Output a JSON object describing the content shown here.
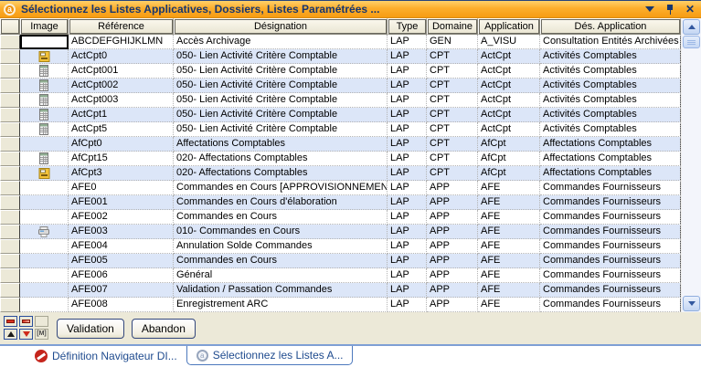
{
  "window": {
    "title": "Sélectionnez les Listes Applicatives, Dossiers, Listes Paramétrées ...",
    "logo_letter": "a",
    "controls": [
      "chevron-down-icon",
      "pin-icon",
      "close-icon"
    ]
  },
  "table": {
    "columns": [
      "",
      "Image",
      "Référence",
      "Désignation",
      "Type",
      "Domaine",
      "Application",
      "Dés. Application"
    ],
    "rows": [
      {
        "icon": "",
        "reference": "ABCDEFGHIJKLMN",
        "designation": "Accès Archivage",
        "type": "LAP",
        "domaine": "GEN",
        "application": "A_VISU",
        "des_application": "Consultation Entités Archivées",
        "selected": true
      },
      {
        "icon": "form-edit-icon",
        "reference": "ActCpt0",
        "designation": "050- Lien Activité Critère Comptable",
        "type": "LAP",
        "domaine": "CPT",
        "application": "ActCpt",
        "des_application": "Activités Comptables"
      },
      {
        "icon": "table-icon",
        "reference": "ActCpt001",
        "designation": "050- Lien Activité Critère Comptable",
        "type": "LAP",
        "domaine": "CPT",
        "application": "ActCpt",
        "des_application": "Activités Comptables"
      },
      {
        "icon": "table-icon",
        "reference": "ActCpt002",
        "designation": "050- Lien Activité Critère Comptable",
        "type": "LAP",
        "domaine": "CPT",
        "application": "ActCpt",
        "des_application": "Activités Comptables"
      },
      {
        "icon": "table-icon",
        "reference": "ActCpt003",
        "designation": "050- Lien Activité Critère Comptable",
        "type": "LAP",
        "domaine": "CPT",
        "application": "ActCpt",
        "des_application": "Activités Comptables"
      },
      {
        "icon": "table-icon",
        "reference": "ActCpt1",
        "designation": "050- Lien Activité Critère Comptable",
        "type": "LAP",
        "domaine": "CPT",
        "application": "ActCpt",
        "des_application": "Activités Comptables"
      },
      {
        "icon": "table-icon",
        "reference": "ActCpt5",
        "designation": "050- Lien Activité Critère Comptable",
        "type": "LAP",
        "domaine": "CPT",
        "application": "ActCpt",
        "des_application": "Activités Comptables"
      },
      {
        "icon": "",
        "reference": "AfCpt0",
        "designation": "Affectations Comptables",
        "type": "LAP",
        "domaine": "CPT",
        "application": "AfCpt",
        "des_application": "Affectations Comptables"
      },
      {
        "icon": "table-icon",
        "reference": "AfCpt15",
        "designation": "020- Affectations Comptables",
        "type": "LAP",
        "domaine": "CPT",
        "application": "AfCpt",
        "des_application": "Affectations Comptables"
      },
      {
        "icon": "form-edit-icon",
        "reference": "AfCpt3",
        "designation": "020- Affectations Comptables",
        "type": "LAP",
        "domaine": "CPT",
        "application": "AfCpt",
        "des_application": "Affectations Comptables"
      },
      {
        "icon": "",
        "reference": "AFE0",
        "designation": "Commandes en Cours [APPROVISIONNEMENT]",
        "type": "LAP",
        "domaine": "APP",
        "application": "AFE",
        "des_application": "Commandes Fournisseurs"
      },
      {
        "icon": "",
        "reference": "AFE001",
        "designation": "Commandes en Cours d'élaboration",
        "type": "LAP",
        "domaine": "APP",
        "application": "AFE",
        "des_application": "Commandes Fournisseurs"
      },
      {
        "icon": "",
        "reference": "AFE002",
        "designation": "Commandes en Cours",
        "type": "LAP",
        "domaine": "APP",
        "application": "AFE",
        "des_application": "Commandes Fournisseurs"
      },
      {
        "icon": "printer-icon",
        "reference": "AFE003",
        "designation": "010- Commandes en Cours",
        "type": "LAP",
        "domaine": "APP",
        "application": "AFE",
        "des_application": "Commandes Fournisseurs"
      },
      {
        "icon": "",
        "reference": "AFE004",
        "designation": "Annulation Solde Commandes",
        "type": "LAP",
        "domaine": "APP",
        "application": "AFE",
        "des_application": "Commandes Fournisseurs"
      },
      {
        "icon": "",
        "reference": "AFE005",
        "designation": "Commandes en Cours",
        "type": "LAP",
        "domaine": "APP",
        "application": "AFE",
        "des_application": "Commandes Fournisseurs"
      },
      {
        "icon": "",
        "reference": "AFE006",
        "designation": "Général",
        "type": "LAP",
        "domaine": "APP",
        "application": "AFE",
        "des_application": "Commandes Fournisseurs"
      },
      {
        "icon": "",
        "reference": "AFE007",
        "designation": "Validation / Passation Commandes",
        "type": "LAP",
        "domaine": "APP",
        "application": "AFE",
        "des_application": "Commandes Fournisseurs"
      },
      {
        "icon": "",
        "reference": "AFE008",
        "designation": "Enregistrement ARC",
        "type": "LAP",
        "domaine": "APP",
        "application": "AFE",
        "des_application": "Commandes Fournisseurs"
      }
    ],
    "scrollbar_icons": [
      "scroll-up-icon",
      "scroll-down-icon"
    ]
  },
  "footer": {
    "nav_buttons": [
      {
        "name": "first-record-icon",
        "glyph": "red-bar",
        "disabled": false
      },
      {
        "name": "last-record-icon",
        "glyph": "red-bar-fade",
        "disabled": false
      },
      {
        "name": "blank-button",
        "glyph": "blank",
        "disabled": true
      },
      {
        "name": "up-triangle-icon",
        "glyph": "up",
        "disabled": false
      },
      {
        "name": "down-triangle-icon",
        "glyph": "down",
        "disabled": false
      },
      {
        "name": "memo-icon",
        "glyph": "m",
        "disabled": true
      }
    ],
    "validation_label": "Validation",
    "abandon_label": "Abandon"
  },
  "taskbar": {
    "tabs": [
      {
        "label": "Définition Navigateur DI...",
        "icon": "divalto-red-icon",
        "active": false
      },
      {
        "label": "Sélectionnez les Listes A...",
        "icon": "app-logo-icon",
        "active": true
      }
    ]
  },
  "colors": {
    "titlebar_orange": "#f69c13",
    "title_text_navy": "#17366e",
    "row_alt_blue": "#dce6f8",
    "panel_beige": "#ece9d8",
    "tab_border_blue": "#4d79bd"
  }
}
